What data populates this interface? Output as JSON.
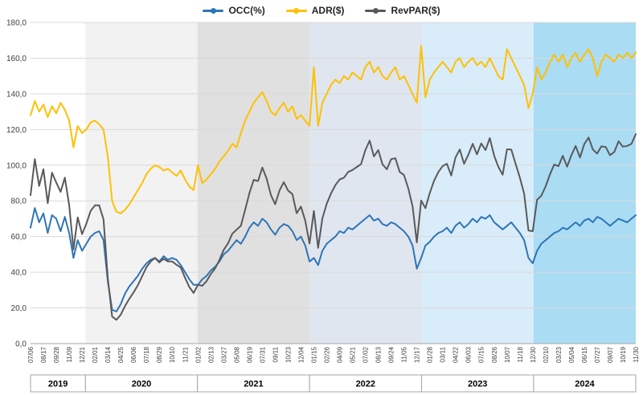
{
  "chart_data": {
    "type": "line",
    "title": "",
    "grid": "horizontal",
    "legend_position": "top-center",
    "y_axis": {
      "min": 0,
      "max": 180,
      "step": 20,
      "tick_labels": [
        "180,0",
        "160,0",
        "140,0",
        "120,0",
        "100,0",
        "80,0",
        "60,0",
        "40,0",
        "20,0",
        "0,0"
      ]
    },
    "x_axis": {
      "tick_step": 3,
      "tick_labels": [
        "07/06",
        "08/17",
        "09/28",
        "11/09",
        "12/21",
        "02/01",
        "03/14",
        "04/25",
        "06/06",
        "07/18",
        "08/29",
        "10/10",
        "11/21",
        "01/02",
        "02/13",
        "03/27",
        "05/08",
        "06/19",
        "07/31",
        "09/11",
        "10/23",
        "12/04",
        "01/15",
        "02/26",
        "04/09",
        "05/21",
        "07/02",
        "08/13",
        "09/24",
        "11/05",
        "12/17",
        "01/28",
        "03/11",
        "04/22",
        "06/03",
        "07/15",
        "08/26",
        "10/07",
        "11/18",
        "12/30",
        "02/10",
        "03/23",
        "05/04",
        "06/15",
        "07/27",
        "09/07",
        "10/19",
        "11/30"
      ]
    },
    "years": [
      {
        "label": "2019",
        "from": 0,
        "to": 12.8,
        "color": "#ffffff"
      },
      {
        "label": "2020",
        "from": 12.8,
        "to": 38.9,
        "color": "#f2f2f2"
      },
      {
        "label": "2021",
        "from": 38.9,
        "to": 65.0,
        "color": "#e0e0e0"
      },
      {
        "label": "2022",
        "from": 65.0,
        "to": 91.1,
        "color": "#dfe6f0"
      },
      {
        "label": "2023",
        "from": 91.1,
        "to": 117.2,
        "color": "#d9ecf9"
      },
      {
        "label": "2024",
        "from": 117.2,
        "to": 141,
        "color": "#aadcf4"
      }
    ],
    "series": [
      {
        "name": "OCC(%)",
        "color": "#2e75b6",
        "values": [
          65,
          76,
          68,
          73,
          62,
          72,
          70,
          63,
          71,
          62,
          48,
          58,
          52,
          56,
          60,
          62,
          63,
          58,
          35,
          19,
          18,
          22,
          28,
          32,
          35,
          38,
          42,
          45,
          47,
          48,
          46,
          49,
          47,
          48,
          47,
          44,
          40,
          36,
          33,
          33,
          36,
          38,
          41,
          43,
          46,
          50,
          52,
          55,
          58,
          56,
          60,
          65,
          68,
          66,
          70,
          68,
          64,
          61,
          65,
          67,
          66,
          63,
          58,
          60,
          55,
          46,
          48,
          44,
          52,
          56,
          58,
          60,
          63,
          62,
          65,
          64,
          66,
          68,
          70,
          72,
          69,
          70,
          67,
          66,
          68,
          67,
          65,
          63,
          60,
          55,
          42,
          48,
          55,
          57,
          60,
          62,
          63,
          65,
          62,
          66,
          68,
          65,
          67,
          70,
          68,
          71,
          70,
          72,
          68,
          66,
          64,
          66,
          68,
          65,
          62,
          58,
          48,
          45,
          52,
          56,
          58,
          60,
          62,
          63,
          65,
          64,
          66,
          68,
          66,
          69,
          70,
          68,
          71,
          70,
          68,
          66,
          68,
          70,
          69,
          68,
          70,
          72
        ]
      },
      {
        "name": "ADR($)",
        "color": "#ffc000",
        "values": [
          128,
          136,
          130,
          134,
          127,
          133,
          129,
          135,
          131,
          125,
          110,
          122,
          118,
          120,
          124,
          125,
          123,
          120,
          105,
          80,
          74,
          73,
          75,
          78,
          82,
          86,
          90,
          95,
          98,
          100,
          99,
          97,
          98,
          96,
          94,
          97,
          92,
          88,
          86,
          100,
          90,
          92,
          95,
          98,
          102,
          105,
          108,
          112,
          110,
          118,
          125,
          130,
          135,
          138,
          141,
          136,
          130,
          128,
          132,
          135,
          130,
          133,
          126,
          128,
          125,
          122,
          155,
          122,
          135,
          140,
          145,
          148,
          146,
          150,
          148,
          152,
          150,
          148,
          155,
          158,
          152,
          155,
          150,
          148,
          152,
          155,
          148,
          150,
          145,
          140,
          135,
          167,
          138,
          148,
          152,
          155,
          158,
          155,
          152,
          158,
          160,
          155,
          158,
          160,
          156,
          158,
          155,
          160,
          155,
          150,
          148,
          165,
          160,
          155,
          150,
          145,
          132,
          140,
          155,
          148,
          152,
          158,
          162,
          158,
          162,
          155,
          160,
          163,
          158,
          162,
          165,
          160,
          150,
          158,
          162,
          160,
          158,
          162,
          160,
          163,
          160,
          163
        ]
      },
      {
        "name": "RevPAR($)",
        "color": "#595959",
        "values": [
          83.2,
          103.4,
          88.4,
          97.8,
          78.7,
          95.8,
          90.3,
          85.1,
          93.0,
          77.5,
          52.8,
          70.8,
          61.4,
          67.2,
          74.4,
          77.5,
          77.5,
          69.6,
          36.8,
          15.2,
          13.3,
          16.1,
          21.0,
          25.0,
          28.7,
          32.7,
          37.8,
          42.8,
          46.1,
          48.0,
          45.5,
          47.5,
          46.1,
          46.1,
          44.2,
          42.7,
          36.8,
          31.7,
          28.4,
          33.0,
          32.4,
          35.0,
          39.0,
          42.1,
          46.9,
          52.5,
          56.2,
          61.6,
          63.8,
          66.1,
          75.0,
          84.5,
          91.8,
          91.1,
          98.7,
          92.5,
          83.2,
          78.1,
          85.8,
          90.5,
          85.8,
          83.8,
          73.1,
          76.8,
          68.8,
          56.1,
          74.4,
          53.7,
          70.2,
          78.4,
          84.1,
          88.8,
          92.0,
          93.0,
          96.2,
          97.3,
          99.0,
          100.6,
          108.5,
          113.8,
          104.9,
          108.5,
          100.5,
          97.7,
          103.4,
          103.9,
          96.2,
          94.5,
          87.0,
          77.0,
          56.7,
          80.2,
          75.9,
          84.4,
          91.2,
          96.1,
          99.5,
          100.8,
          94.2,
          104.3,
          108.8,
          100.8,
          105.9,
          112.0,
          106.1,
          112.2,
          108.5,
          115.2,
          105.4,
          99.0,
          94.7,
          108.9,
          108.8,
          100.8,
          93.0,
          84.1,
          63.4,
          63.0,
          80.6,
          82.9,
          88.2,
          94.8,
          100.4,
          99.5,
          105.3,
          99.2,
          105.6,
          110.8,
          104.3,
          111.8,
          115.5,
          108.8,
          106.5,
          110.6,
          110.2,
          105.6,
          107.4,
          113.4,
          110.4,
          110.8,
          112.0,
          117.4
        ]
      }
    ]
  }
}
